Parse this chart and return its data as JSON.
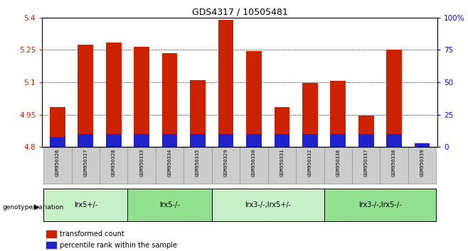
{
  "title": "GDS4317 / 10505481",
  "samples": [
    "GSM950326",
    "GSM950327",
    "GSM950328",
    "GSM950333",
    "GSM950334",
    "GSM950335",
    "GSM950329",
    "GSM950330",
    "GSM950331",
    "GSM950332",
    "GSM950336",
    "GSM950337",
    "GSM950338",
    "GSM950339"
  ],
  "transformed_count": [
    4.985,
    5.275,
    5.285,
    5.265,
    5.235,
    5.11,
    5.39,
    5.245,
    4.985,
    5.095,
    5.105,
    4.945,
    5.25,
    4.8
  ],
  "percentile_rank_pct": [
    8,
    10,
    10,
    10,
    10,
    10,
    10,
    10,
    10,
    10,
    10,
    10,
    10,
    3
  ],
  "bar_base": 4.8,
  "red_color": "#cc2200",
  "blue_color": "#2222cc",
  "ylim_left": [
    4.8,
    5.4
  ],
  "ylim_right": [
    0,
    100
  ],
  "yticks_left": [
    4.8,
    4.95,
    5.1,
    5.25,
    5.4
  ],
  "yticks_right": [
    0,
    25,
    50,
    75,
    100
  ],
  "ytick_labels_left": [
    "4.8",
    "4.95",
    "5.1",
    "5.25",
    "5.4"
  ],
  "ytick_labels_right": [
    "0",
    "25",
    "50",
    "75",
    "100%"
  ],
  "grid_yticks": [
    4.95,
    5.1,
    5.25
  ],
  "groups": [
    {
      "label": "lrx5+/-",
      "start": 0,
      "end": 3,
      "color": "#c8f0c8"
    },
    {
      "label": "lrx5-/-",
      "start": 3,
      "end": 6,
      "color": "#90e090"
    },
    {
      "label": "lrx3-/-;lrx5+/-",
      "start": 6,
      "end": 10,
      "color": "#c8f0c8"
    },
    {
      "label": "lrx3-/-;lrx5-/-",
      "start": 10,
      "end": 14,
      "color": "#90e090"
    }
  ],
  "xlabel_genotype": "genotype/variation",
  "legend_red": "transformed count",
  "legend_blue": "percentile rank within the sample",
  "bar_width": 0.55,
  "sample_bg_color": "#cccccc",
  "bg_color": "#ffffff"
}
